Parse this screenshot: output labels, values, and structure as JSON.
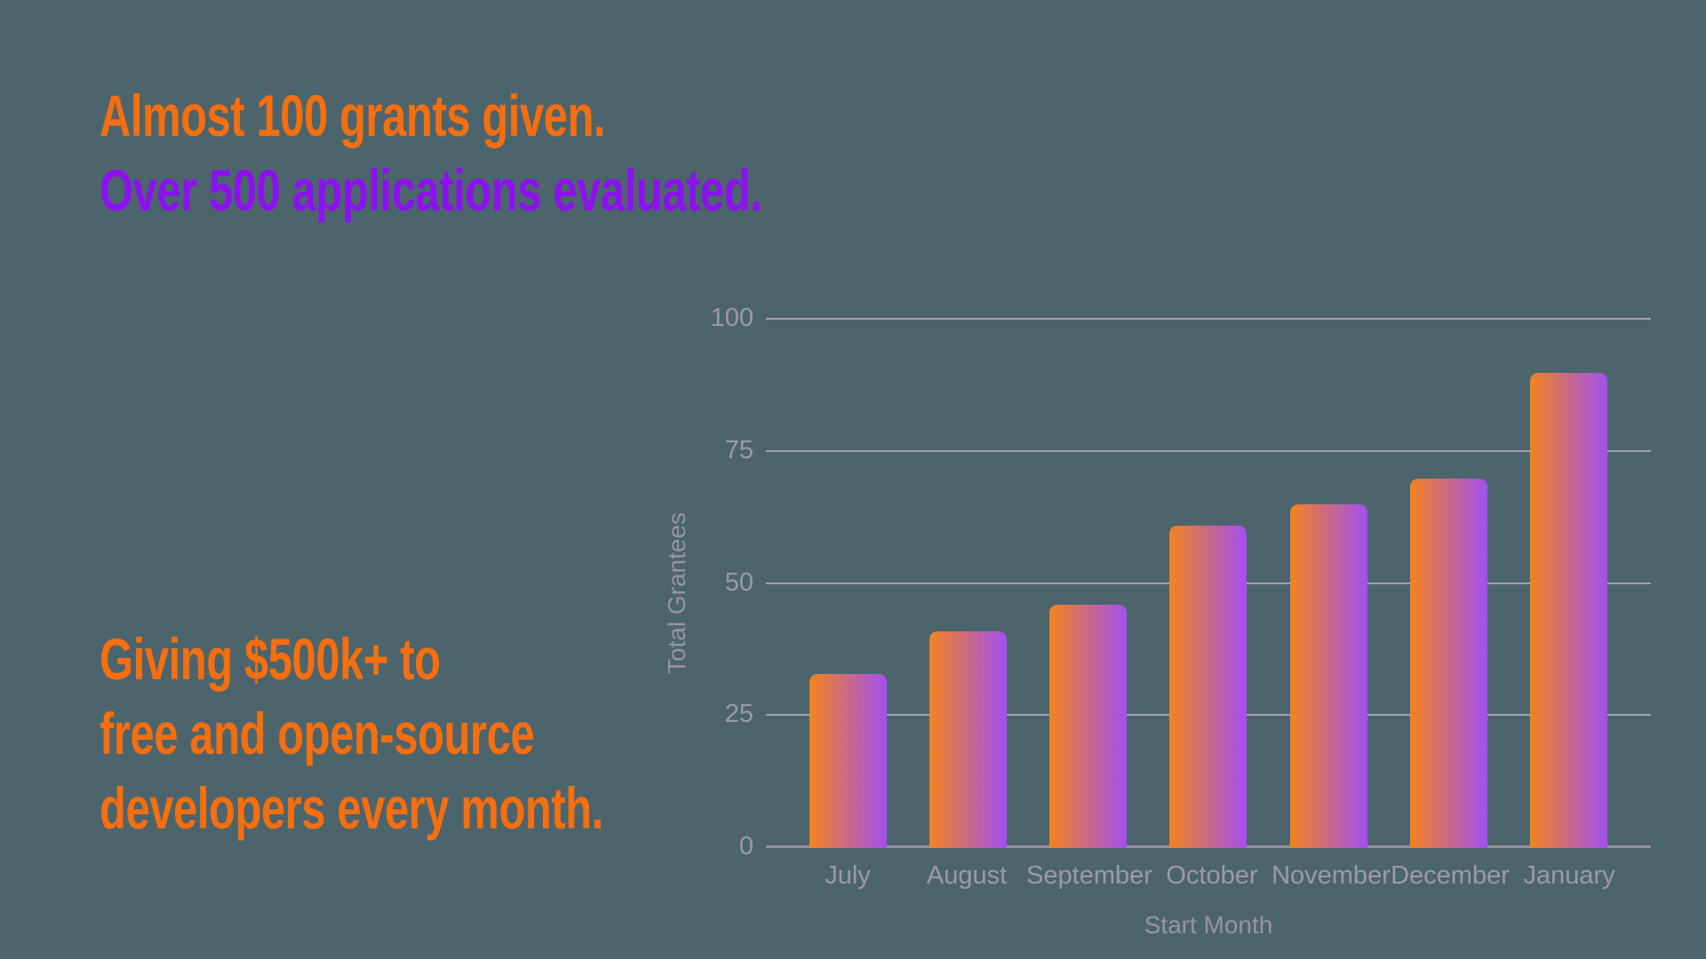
{
  "headline": {
    "line1": "Almost 100 grants given.",
    "line2": "Over 500 applications evaluated."
  },
  "subtext": {
    "line1": "Giving $500k+ to",
    "line2": "free and open-source",
    "line3": "developers every month."
  },
  "colors": {
    "background": "#4c656d",
    "headline_orange": "#f66e0e",
    "headline_purple": "#8d10f0",
    "bar_gradient_start": "#f2831f",
    "bar_gradient_end": "#a24ff2",
    "gridline": "#a69eb0",
    "axis_line": "#948e9b",
    "tick_label": "#9e98a6",
    "axis_title": "#99939f"
  },
  "chart_data": {
    "type": "bar",
    "categories": [
      "July",
      "August",
      "September",
      "October",
      "November",
      "December",
      "January"
    ],
    "values": [
      33,
      41,
      46,
      61,
      65,
      70,
      90
    ],
    "title": "",
    "xlabel": "Start Month",
    "ylabel": "Total Grantees",
    "yticks": [
      0,
      25,
      50,
      75,
      100
    ],
    "ylim": [
      0,
      100
    ],
    "grid": "horizontal",
    "legend": "none",
    "bar_style": "horizontal gradient orange to purple, rounded top corners"
  }
}
